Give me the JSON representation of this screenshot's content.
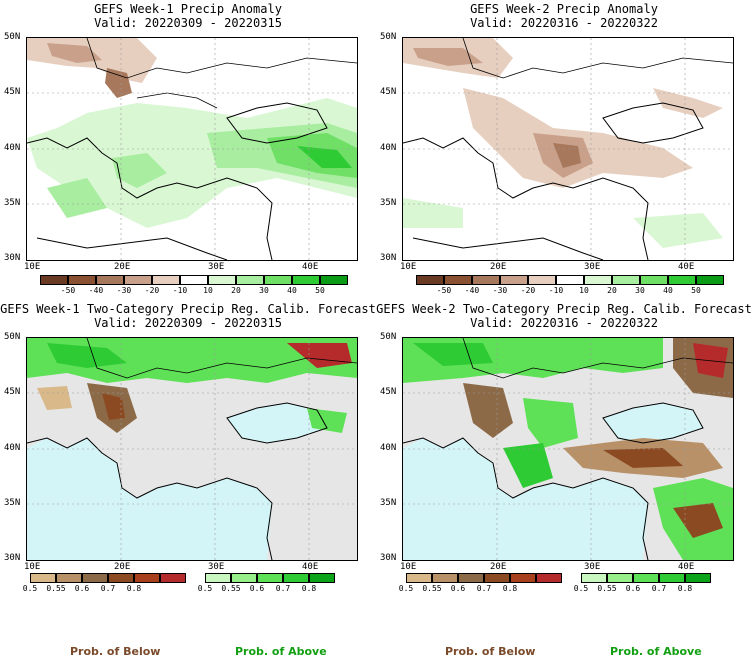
{
  "panels": [
    {
      "title": "GEFS Week-1 Precip Anomaly",
      "valid": "Valid: 20220309 - 20220315"
    },
    {
      "title": "GEFS Week-2 Precip Anomaly",
      "valid": "Valid: 20220316 - 20220322"
    },
    {
      "title": "GEFS Week-1 Two-Category Precip Reg. Calib. Forecast",
      "valid": "Valid: 20220309 - 20220315"
    },
    {
      "title": "GEFS Week-2 Two-Category Precip Reg. Calib. Forecast",
      "valid": "Valid: 20220316 - 20220322"
    }
  ],
  "axes": {
    "lat_labels": [
      "50N",
      "45N",
      "40N",
      "35N",
      "30N"
    ],
    "lon_labels": [
      "10E",
      "20E",
      "30E",
      "40E"
    ]
  },
  "anomaly_colorbar": {
    "labels": [
      "-50",
      "-40",
      "-30",
      "-20",
      "-10",
      "10",
      "20",
      "30",
      "40",
      "50"
    ],
    "colors": [
      "#6b3a22",
      "#8a5233",
      "#a8785c",
      "#c9a18b",
      "#e7cfc0",
      "#ffffff",
      "#d9f7d3",
      "#a9eda0",
      "#6fdf66",
      "#2ecb34",
      "#0a9a16"
    ]
  },
  "prob_colorbar": {
    "below_labels": [
      "0.5",
      "0.55",
      "0.6",
      "0.7",
      "0.8"
    ],
    "below_colors": [
      "#d9b98a",
      "#b89168",
      "#8c6a48",
      "#8c4a22",
      "#b52a2a"
    ],
    "above_labels": [
      "0.5",
      "0.55",
      "0.6",
      "0.7",
      "0.8"
    ],
    "above_colors": [
      "#c8f7bf",
      "#97ef89",
      "#5fe157",
      "#2ecb34",
      "#0aa31a"
    ]
  },
  "legend": {
    "below": "Prob. of Below",
    "above": "Prob. of Above",
    "below_color": "#7a4a2a",
    "above_color": "#12a012"
  },
  "map_colors": {
    "ocean": "#d4f5f8",
    "land_gray": "#e6e6e6",
    "border": "#000000"
  }
}
